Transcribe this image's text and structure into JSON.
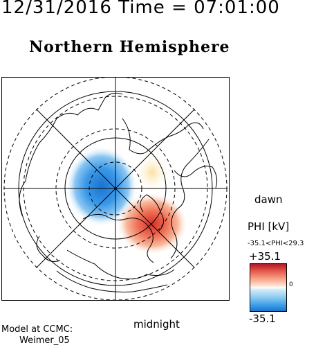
{
  "header": {
    "title": "12/31/2016 Time = 07:01:00",
    "subtitle": "Northern Hemisphere"
  },
  "map": {
    "type": "polar potential map",
    "directions": {
      "dawn": "dawn",
      "midnight": "midnight"
    },
    "latitude_rings_deg": [
      80,
      70,
      60,
      50
    ],
    "colors": {
      "positive": "#d73027",
      "negative": "#2f8fe0",
      "coastline": "#000000"
    }
  },
  "colorbar": {
    "title": "PHI [kV]",
    "range_text": "-35.1<PHI<29.3",
    "max_label": "+35.1",
    "min_label": "-35.1",
    "zero_label": "0"
  },
  "credit": {
    "line1": "Model at CCMC:",
    "line2": "Weimer_05"
  }
}
